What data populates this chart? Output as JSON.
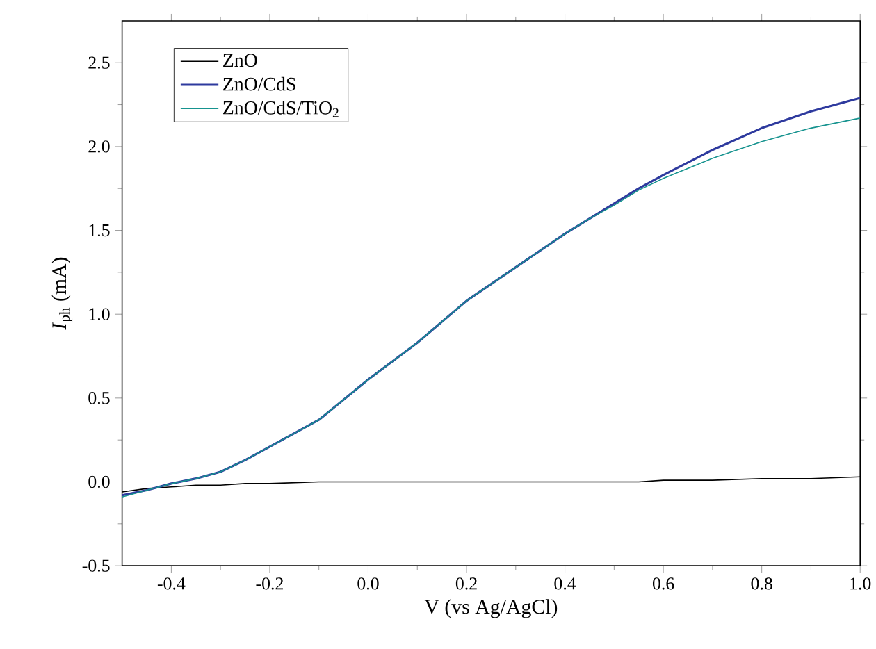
{
  "chart_data": {
    "type": "line",
    "xlabel": "V (vs  Ag/AgCl)",
    "ylabel": "*I*$_{ph}$ (mA)",
    "xlim": [
      -0.5,
      1.0
    ],
    "ylim": [
      -0.5,
      2.75
    ],
    "xticks": [
      {
        "value": -0.4,
        "label": "-0.4"
      },
      {
        "value": -0.2,
        "label": "-0.2"
      },
      {
        "value": 0,
        "label": "0.0"
      },
      {
        "value": 0.2,
        "label": "0.2"
      },
      {
        "value": 0.4,
        "label": "0.4"
      },
      {
        "value": 0.6,
        "label": "0.6"
      },
      {
        "value": 0.8,
        "label": "0.8"
      },
      {
        "value": 1.0,
        "label": "1.0"
      }
    ],
    "yticks": [
      {
        "value": -0.5,
        "label": "-0.5"
      },
      {
        "value": 0,
        "label": "0.0"
      },
      {
        "value": 0.5,
        "label": "0.5"
      },
      {
        "value": 1.0,
        "label": "1.0"
      },
      {
        "value": 1.5,
        "label": "1.5"
      },
      {
        "value": 2.0,
        "label": "2.0"
      },
      {
        "value": 2.5,
        "label": "2.5"
      }
    ],
    "legend": "top left",
    "grid": false,
    "line_style": "solid",
    "x": [
      -0.5,
      -0.45,
      -0.4,
      -0.35,
      -0.3,
      -0.25,
      -0.2,
      -0.1,
      0,
      0.1,
      0.2,
      0.3,
      0.4,
      0.45,
      0.5,
      0.55,
      0.6,
      0.7,
      0.8,
      0.9,
      1.0
    ],
    "series": [
      {
        "name": "ZnO",
        "color": "#000000",
        "values": [
          -0.06,
          -0.04,
          -0.03,
          -0.02,
          -0.02,
          -0.01,
          -0.01,
          0.0,
          0.0,
          0.0,
          0.0,
          0.0,
          0.0,
          0.0,
          0.0,
          0.0,
          0.01,
          0.01,
          0.02,
          0.02,
          0.03
        ]
      },
      {
        "name": "ZnO/CdS",
        "color": "#2e3a9e",
        "values": [
          -0.08,
          -0.05,
          -0.01,
          0.02,
          0.06,
          0.13,
          0.21,
          0.37,
          0.61,
          0.83,
          1.08,
          1.28,
          1.48,
          1.57,
          1.66,
          1.75,
          1.83,
          1.98,
          2.11,
          2.21,
          2.29
        ]
      },
      {
        "name": "ZnO/CdS/TiO$_{2}$",
        "color": "#16938f",
        "values": [
          -0.09,
          -0.05,
          -0.01,
          0.02,
          0.06,
          0.13,
          0.21,
          0.37,
          0.61,
          0.83,
          1.08,
          1.28,
          1.48,
          1.57,
          1.65,
          1.74,
          1.81,
          1.93,
          2.03,
          2.11,
          2.17
        ]
      }
    ]
  }
}
